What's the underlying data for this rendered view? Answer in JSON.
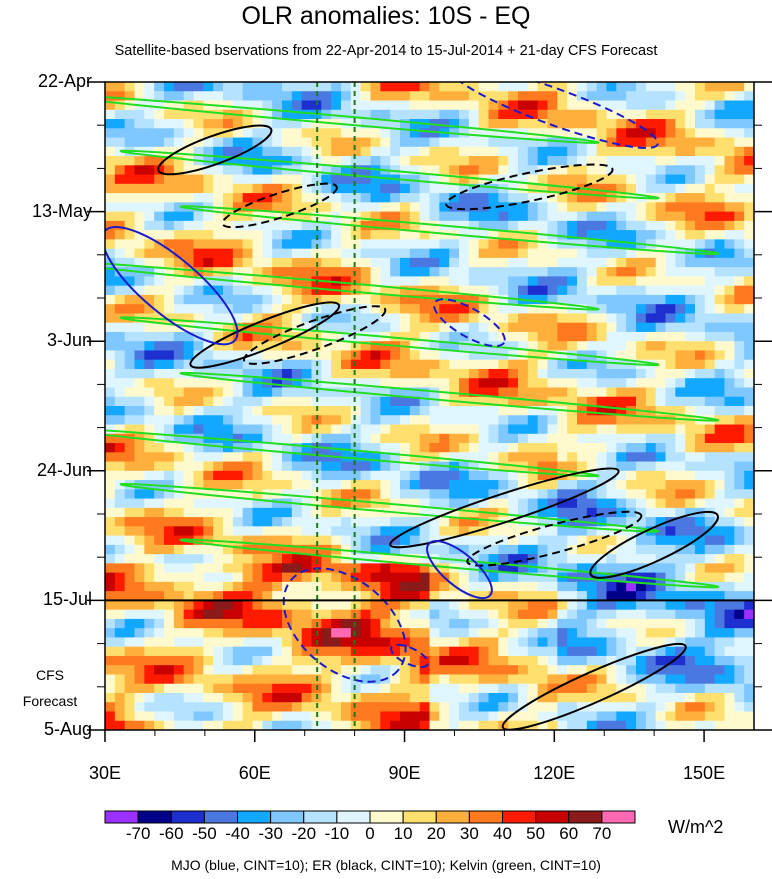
{
  "chart_data": {
    "type": "heatmap",
    "title": "OLR anomalies: 10S - EQ",
    "subtitle": "Satellite-based bservations from 22-Apr-2014 to 15-Jul-2014 + 21-day CFS Forecast",
    "x_ticks": [
      {
        "value": 30,
        "label": "30E"
      },
      {
        "value": 60,
        "label": "60E"
      },
      {
        "value": 90,
        "label": "90E"
      },
      {
        "value": 120,
        "label": "120E"
      },
      {
        "value": 150,
        "label": "150E"
      }
    ],
    "xlim": [
      30,
      160
    ],
    "y_ticks": [
      {
        "day": 0,
        "label": "22-Apr"
      },
      {
        "day": 21,
        "label": "13-May"
      },
      {
        "day": 42,
        "label": "3-Jun"
      },
      {
        "day": 63,
        "label": "24-Jun"
      },
      {
        "day": 84,
        "label": "15-Jul"
      },
      {
        "day": 105,
        "label": "5-Aug"
      }
    ],
    "ylim_days": [
      0,
      105
    ],
    "forecast_label": [
      "CFS",
      "Forecast"
    ],
    "colorbar": {
      "levels": [
        -70,
        -60,
        -50,
        -40,
        -30,
        -20,
        -10,
        0,
        10,
        20,
        30,
        40,
        50,
        60,
        70
      ],
      "labels": [
        "-70",
        "-60",
        "-50",
        "-40",
        "-30",
        "-20",
        "-10",
        "0",
        "10",
        "20",
        "30",
        "40",
        "50",
        "60",
        "70"
      ],
      "colors": [
        "#9b30ff",
        "#00008b",
        "#1e2fd0",
        "#4a78e0",
        "#12a8ff",
        "#7fc8ff",
        "#b5e3ff",
        "#e0f6ff",
        "#fffacd",
        "#ffe06e",
        "#ffb03c",
        "#ff7a1e",
        "#ff1a00",
        "#c80000",
        "#8b1a1a",
        "#ff69b4"
      ],
      "units": "W/m^2"
    },
    "reference_lines_lon": [
      72.5,
      80
    ],
    "forecast_start_day": 84,
    "contour_legend": "MJO (blue, CINT=10); ER (black, CINT=10); Kelvin (green, CINT=10)",
    "contour_colors": {
      "mjo": "#1a1acd",
      "er": "#000000",
      "kelvin": "#22dd22"
    }
  }
}
